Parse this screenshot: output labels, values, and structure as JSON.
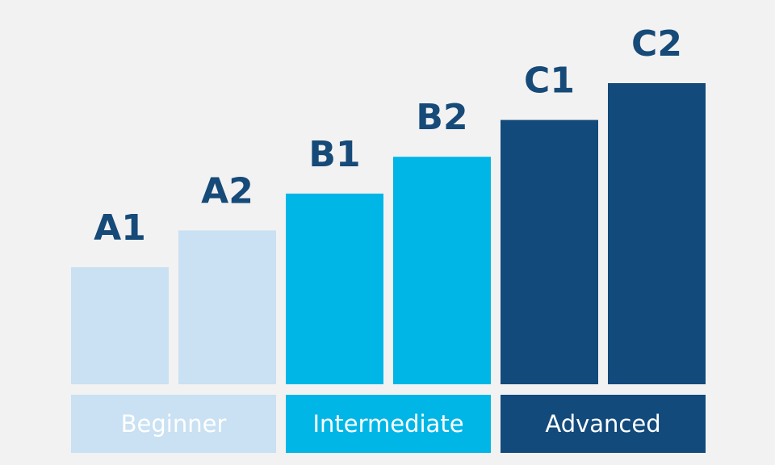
{
  "chart_data": {
    "type": "bar",
    "title": "",
    "xlabel": "",
    "ylabel": "",
    "categories": [
      "A1",
      "A2",
      "B1",
      "B2",
      "C1",
      "C2"
    ],
    "values": [
      1,
      2,
      3,
      4,
      5,
      6
    ],
    "ylim": [
      0,
      6
    ],
    "grid": false,
    "groups": [
      {
        "label": "Beginner",
        "members": [
          "A1",
          "A2"
        ],
        "color": "#c9e1f2",
        "text_color": "#ffffff"
      },
      {
        "label": "Intermediate",
        "members": [
          "B1",
          "B2"
        ],
        "color": "#00b6e6",
        "text_color": "#ffffff"
      },
      {
        "label": "Advanced",
        "members": [
          "C1",
          "C2"
        ],
        "color": "#124a7c",
        "text_color": "#ffffff"
      }
    ],
    "label_color": "#164a78",
    "background": "#f2f2f2"
  }
}
